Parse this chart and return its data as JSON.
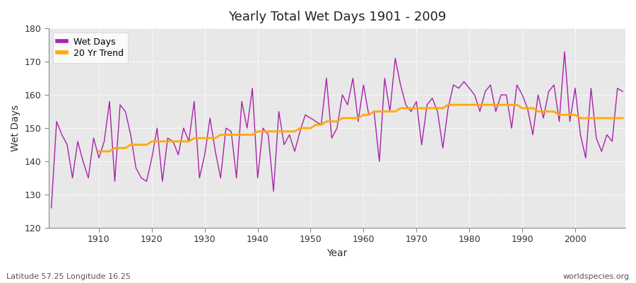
{
  "title": "Yearly Total Wet Days 1901 - 2009",
  "xlabel": "Year",
  "ylabel": "Wet Days",
  "subtitle_left": "Latitude 57.25 Longitude 16.25",
  "subtitle_right": "worldspecies.org",
  "ylim": [
    120,
    180
  ],
  "yticks": [
    120,
    130,
    140,
    150,
    160,
    170,
    180
  ],
  "line_color": "#aa22aa",
  "trend_color": "#ffaa00",
  "fig_bg_color": "#ffffff",
  "plot_bg_color": "#e8e8e8",
  "grid_color": "#ffffff",
  "years": [
    1901,
    1902,
    1903,
    1904,
    1905,
    1906,
    1907,
    1908,
    1909,
    1910,
    1911,
    1912,
    1913,
    1914,
    1915,
    1916,
    1917,
    1918,
    1919,
    1920,
    1921,
    1922,
    1923,
    1924,
    1925,
    1926,
    1927,
    1928,
    1929,
    1930,
    1931,
    1932,
    1933,
    1934,
    1935,
    1936,
    1937,
    1938,
    1939,
    1940,
    1941,
    1942,
    1943,
    1944,
    1945,
    1946,
    1947,
    1948,
    1949,
    1950,
    1951,
    1952,
    1953,
    1954,
    1955,
    1956,
    1957,
    1958,
    1959,
    1960,
    1961,
    1962,
    1963,
    1964,
    1965,
    1966,
    1967,
    1968,
    1969,
    1970,
    1971,
    1972,
    1973,
    1974,
    1975,
    1976,
    1977,
    1978,
    1979,
    1980,
    1981,
    1982,
    1983,
    1984,
    1985,
    1986,
    1987,
    1988,
    1989,
    1990,
    1991,
    1992,
    1993,
    1994,
    1995,
    1996,
    1997,
    1998,
    1999,
    2000,
    2001,
    2002,
    2003,
    2004,
    2005,
    2006,
    2007,
    2008,
    2009
  ],
  "wet_days": [
    126,
    152,
    148,
    145,
    135,
    146,
    140,
    135,
    147,
    141,
    146,
    158,
    134,
    157,
    155,
    148,
    138,
    135,
    134,
    141,
    150,
    134,
    147,
    146,
    142,
    150,
    146,
    158,
    135,
    142,
    153,
    143,
    135,
    150,
    149,
    135,
    158,
    150,
    162,
    135,
    150,
    148,
    131,
    155,
    145,
    148,
    143,
    149,
    154,
    153,
    152,
    151,
    165,
    147,
    150,
    160,
    157,
    165,
    152,
    163,
    154,
    155,
    140,
    165,
    155,
    171,
    163,
    157,
    155,
    158,
    145,
    157,
    159,
    155,
    144,
    156,
    163,
    162,
    164,
    162,
    160,
    155,
    161,
    163,
    155,
    160,
    160,
    150,
    163,
    160,
    156,
    148,
    160,
    153,
    161,
    163,
    152,
    173,
    152,
    162,
    148,
    141,
    162,
    147,
    143,
    148,
    146,
    162,
    161
  ],
  "trend_years": [
    1910,
    1911,
    1912,
    1913,
    1914,
    1915,
    1916,
    1917,
    1918,
    1919,
    1920,
    1921,
    1922,
    1923,
    1924,
    1925,
    1926,
    1927,
    1928,
    1929,
    1930,
    1931,
    1932,
    1933,
    1934,
    1935,
    1936,
    1937,
    1938,
    1939,
    1940,
    1941,
    1942,
    1943,
    1944,
    1945,
    1946,
    1947,
    1948,
    1949,
    1950,
    1951,
    1952,
    1953,
    1954,
    1955,
    1956,
    1957,
    1958,
    1959,
    1960,
    1961,
    1962,
    1963,
    1964,
    1965,
    1966,
    1967,
    1968,
    1969,
    1970,
    1971,
    1972,
    1973,
    1974,
    1975,
    1976,
    1977,
    1978,
    1979,
    1980,
    1981,
    1982,
    1983,
    1984,
    1985,
    1986,
    1987,
    1988,
    1989,
    1990,
    1991,
    1992,
    1993,
    1994,
    1995,
    1996,
    1997,
    1998,
    1999,
    2000,
    2001,
    2002,
    2003,
    2004,
    2005,
    2006,
    2007,
    2008,
    2009
  ],
  "trend_values": [
    143,
    143,
    143,
    144,
    144,
    144,
    145,
    145,
    145,
    145,
    146,
    146,
    146,
    146,
    146,
    146,
    146,
    146,
    147,
    147,
    147,
    147,
    147,
    148,
    148,
    148,
    148,
    148,
    148,
    148,
    149,
    149,
    149,
    149,
    149,
    149,
    149,
    149,
    150,
    150,
    150,
    151,
    151,
    152,
    152,
    152,
    153,
    153,
    153,
    153,
    154,
    154,
    155,
    155,
    155,
    155,
    155,
    156,
    156,
    156,
    156,
    156,
    156,
    156,
    156,
    156,
    157,
    157,
    157,
    157,
    157,
    157,
    157,
    157,
    157,
    157,
    157,
    157,
    157,
    157,
    156,
    156,
    156,
    155,
    155,
    155,
    155,
    154,
    154,
    154,
    154,
    153,
    153,
    153,
    153,
    153,
    153,
    153,
    153,
    153
  ]
}
